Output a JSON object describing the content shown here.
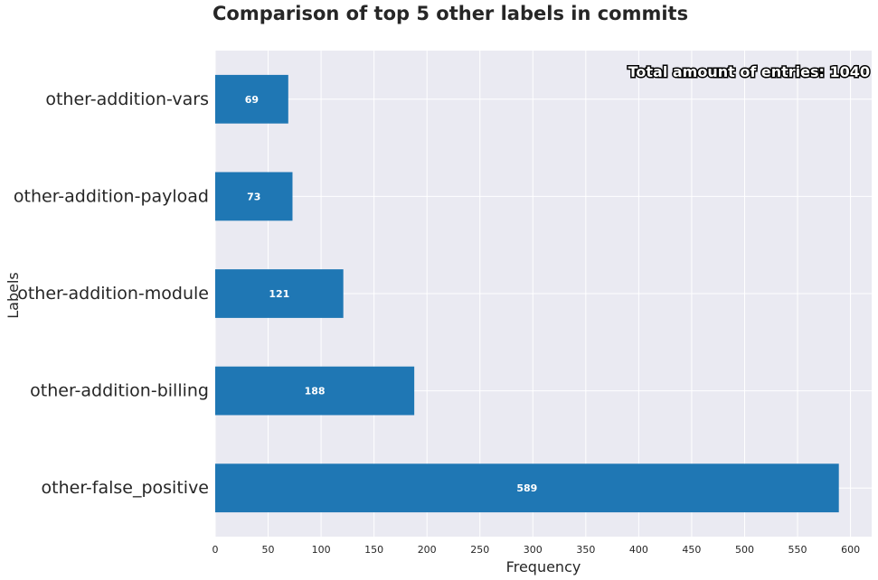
{
  "chart_data": {
    "type": "bar",
    "orientation": "horizontal",
    "title": "Comparison of top 5 other labels in commits",
    "xlabel": "Frequency",
    "ylabel": "Labels",
    "categories": [
      "other-false_positive",
      "other-addition-billing",
      "other-addition-module",
      "other-addition-payload",
      "other-addition-vars"
    ],
    "values": [
      589,
      188,
      121,
      73,
      69
    ],
    "xlim": [
      0,
      620
    ],
    "xticks": [
      0,
      50,
      100,
      150,
      200,
      250,
      300,
      350,
      400,
      450,
      500,
      550,
      600
    ],
    "grid": true,
    "annotation": "Total amount of entries: 1040",
    "colors": {
      "bar": "#1f77b4",
      "plot_background": "#eaeaf2",
      "grid": "#ffffff"
    }
  }
}
